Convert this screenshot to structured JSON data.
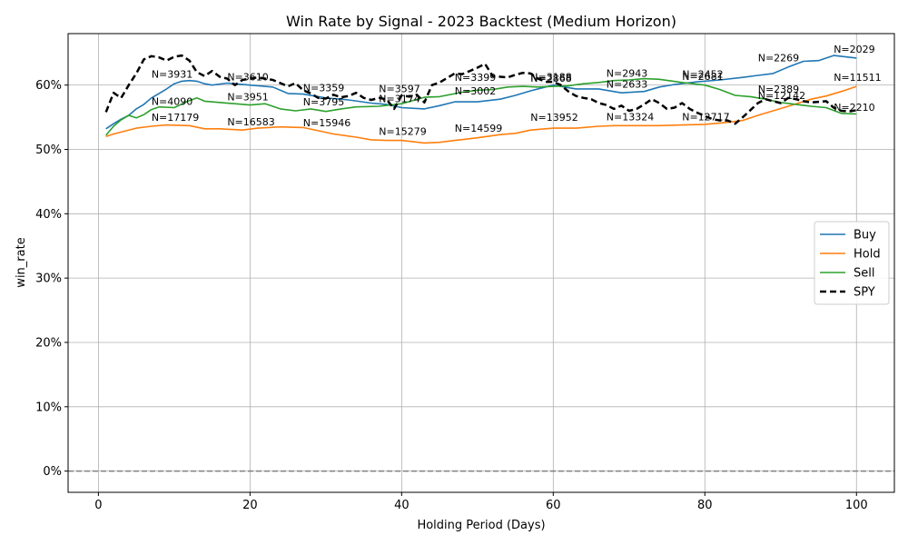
{
  "chart_data": {
    "type": "line",
    "title": "Win Rate by Signal - 2023 Backtest (Medium Horizon)",
    "xlabel": "Holding Period (Days)",
    "ylabel": "win_rate",
    "xlim": [
      -4,
      105
    ],
    "ylim": [
      -0.033,
      0.68
    ],
    "xticks": [
      0,
      20,
      40,
      60,
      80,
      100
    ],
    "xtick_labels": [
      "0",
      "20",
      "40",
      "60",
      "80",
      "100"
    ],
    "yticks": [
      0,
      0.1,
      0.2,
      0.3,
      0.4,
      0.5,
      0.6
    ],
    "ytick_labels": [
      "0%",
      "10%",
      "20%",
      "30%",
      "40%",
      "50%",
      "60%"
    ],
    "grid": true,
    "legend_position": "center-right",
    "reference_line": {
      "y": 0,
      "style": "dashed",
      "color": "#808080"
    },
    "series": [
      {
        "name": "Buy",
        "color": "#1f77b4",
        "dash": false,
        "points": [
          [
            1,
            0.532
          ],
          [
            2,
            0.54
          ],
          [
            3,
            0.547
          ],
          [
            4,
            0.553
          ],
          [
            5,
            0.563
          ],
          [
            6,
            0.57
          ],
          [
            7,
            0.58
          ],
          [
            8,
            0.587
          ],
          [
            9,
            0.594
          ],
          [
            10,
            0.602
          ],
          [
            11,
            0.606
          ],
          [
            12,
            0.607
          ],
          [
            13,
            0.606
          ],
          [
            14,
            0.602
          ],
          [
            15,
            0.6
          ],
          [
            17,
            0.603
          ],
          [
            20,
            0.6
          ],
          [
            23,
            0.597
          ],
          [
            25,
            0.587
          ],
          [
            27,
            0.586
          ],
          [
            30,
            0.58
          ],
          [
            33,
            0.577
          ],
          [
            36,
            0.572
          ],
          [
            38,
            0.57
          ],
          [
            40,
            0.565
          ],
          [
            43,
            0.563
          ],
          [
            45,
            0.568
          ],
          [
            47,
            0.574
          ],
          [
            50,
            0.574
          ],
          [
            53,
            0.578
          ],
          [
            55,
            0.584
          ],
          [
            57,
            0.591
          ],
          [
            60,
            0.6
          ],
          [
            63,
            0.594
          ],
          [
            66,
            0.594
          ],
          [
            69,
            0.588
          ],
          [
            72,
            0.59
          ],
          [
            74,
            0.597
          ],
          [
            76,
            0.601
          ],
          [
            79,
            0.605
          ],
          [
            82,
            0.608
          ],
          [
            85,
            0.612
          ],
          [
            87,
            0.615
          ],
          [
            89,
            0.618
          ],
          [
            91,
            0.628
          ],
          [
            93,
            0.637
          ],
          [
            95,
            0.638
          ],
          [
            97,
            0.646
          ],
          [
            100,
            0.642
          ]
        ]
      },
      {
        "name": "Hold",
        "color": "#ff7f0e",
        "dash": false,
        "points": [
          [
            1,
            0.52
          ],
          [
            2,
            0.524
          ],
          [
            3,
            0.527
          ],
          [
            5,
            0.533
          ],
          [
            7,
            0.536
          ],
          [
            9,
            0.538
          ],
          [
            12,
            0.537
          ],
          [
            14,
            0.532
          ],
          [
            16,
            0.532
          ],
          [
            19,
            0.53
          ],
          [
            21,
            0.533
          ],
          [
            24,
            0.535
          ],
          [
            27,
            0.534
          ],
          [
            29,
            0.529
          ],
          [
            31,
            0.524
          ],
          [
            34,
            0.519
          ],
          [
            36,
            0.515
          ],
          [
            38,
            0.514
          ],
          [
            40,
            0.514
          ],
          [
            43,
            0.51
          ],
          [
            45,
            0.511
          ],
          [
            47,
            0.514
          ],
          [
            50,
            0.518
          ],
          [
            53,
            0.523
          ],
          [
            55,
            0.525
          ],
          [
            57,
            0.53
          ],
          [
            60,
            0.533
          ],
          [
            63,
            0.533
          ],
          [
            66,
            0.536
          ],
          [
            68,
            0.537
          ],
          [
            71,
            0.537
          ],
          [
            74,
            0.537
          ],
          [
            77,
            0.538
          ],
          [
            80,
            0.539
          ],
          [
            83,
            0.542
          ],
          [
            85,
            0.545
          ],
          [
            87,
            0.553
          ],
          [
            89,
            0.56
          ],
          [
            91,
            0.567
          ],
          [
            94,
            0.578
          ],
          [
            96,
            0.583
          ],
          [
            98,
            0.59
          ],
          [
            100,
            0.598
          ]
        ]
      },
      {
        "name": "Sell",
        "color": "#2ca02c",
        "dash": false,
        "points": [
          [
            1,
            0.522
          ],
          [
            2,
            0.536
          ],
          [
            3,
            0.546
          ],
          [
            4,
            0.553
          ],
          [
            5,
            0.549
          ],
          [
            6,
            0.554
          ],
          [
            7,
            0.562
          ],
          [
            8,
            0.566
          ],
          [
            10,
            0.565
          ],
          [
            12,
            0.576
          ],
          [
            13,
            0.58
          ],
          [
            14,
            0.575
          ],
          [
            16,
            0.573
          ],
          [
            18,
            0.571
          ],
          [
            20,
            0.569
          ],
          [
            22,
            0.571
          ],
          [
            24,
            0.563
          ],
          [
            26,
            0.56
          ],
          [
            28,
            0.563
          ],
          [
            30,
            0.559
          ],
          [
            32,
            0.563
          ],
          [
            34,
            0.566
          ],
          [
            37,
            0.567
          ],
          [
            40,
            0.571
          ],
          [
            43,
            0.581
          ],
          [
            45,
            0.582
          ],
          [
            48,
            0.589
          ],
          [
            50,
            0.592
          ],
          [
            52,
            0.593
          ],
          [
            54,
            0.597
          ],
          [
            56,
            0.598
          ],
          [
            58,
            0.597
          ],
          [
            60,
            0.598
          ],
          [
            62,
            0.599
          ],
          [
            64,
            0.602
          ],
          [
            66,
            0.604
          ],
          [
            68,
            0.607
          ],
          [
            70,
            0.608
          ],
          [
            72,
            0.61
          ],
          [
            74,
            0.609
          ],
          [
            77,
            0.604
          ],
          [
            80,
            0.6
          ],
          [
            82,
            0.593
          ],
          [
            84,
            0.584
          ],
          [
            86,
            0.582
          ],
          [
            88,
            0.578
          ],
          [
            90,
            0.573
          ],
          [
            92,
            0.57
          ],
          [
            94,
            0.567
          ],
          [
            96,
            0.565
          ],
          [
            98,
            0.556
          ],
          [
            100,
            0.555
          ]
        ]
      },
      {
        "name": "SPY",
        "color": "#000000",
        "dash": true,
        "points": [
          [
            1,
            0.558
          ],
          [
            2,
            0.588
          ],
          [
            3,
            0.58
          ],
          [
            4,
            0.6
          ],
          [
            5,
            0.618
          ],
          [
            6,
            0.64
          ],
          [
            7,
            0.645
          ],
          [
            8,
            0.643
          ],
          [
            9,
            0.638
          ],
          [
            10,
            0.644
          ],
          [
            11,
            0.646
          ],
          [
            12,
            0.638
          ],
          [
            13,
            0.62
          ],
          [
            14,
            0.614
          ],
          [
            15,
            0.622
          ],
          [
            16,
            0.613
          ],
          [
            17,
            0.61
          ],
          [
            18,
            0.6
          ],
          [
            19,
            0.608
          ],
          [
            20,
            0.61
          ],
          [
            21,
            0.612
          ],
          [
            22,
            0.61
          ],
          [
            23,
            0.608
          ],
          [
            24,
            0.603
          ],
          [
            25,
            0.598
          ],
          [
            26,
            0.603
          ],
          [
            27,
            0.592
          ],
          [
            28,
            0.587
          ],
          [
            29,
            0.58
          ],
          [
            30,
            0.579
          ],
          [
            31,
            0.585
          ],
          [
            32,
            0.581
          ],
          [
            33,
            0.583
          ],
          [
            34,
            0.588
          ],
          [
            35,
            0.58
          ],
          [
            36,
            0.577
          ],
          [
            37,
            0.58
          ],
          [
            38,
            0.578
          ],
          [
            39,
            0.563
          ],
          [
            40,
            0.584
          ],
          [
            41,
            0.582
          ],
          [
            42,
            0.585
          ],
          [
            43,
            0.573
          ],
          [
            44,
            0.6
          ],
          [
            45,
            0.604
          ],
          [
            46,
            0.611
          ],
          [
            47,
            0.618
          ],
          [
            48,
            0.617
          ],
          [
            49,
            0.622
          ],
          [
            50,
            0.627
          ],
          [
            51,
            0.633
          ],
          [
            52,
            0.614
          ],
          [
            53,
            0.613
          ],
          [
            54,
            0.612
          ],
          [
            55,
            0.616
          ],
          [
            56,
            0.619
          ],
          [
            57,
            0.618
          ],
          [
            58,
            0.61
          ],
          [
            59,
            0.605
          ],
          [
            60,
            0.605
          ],
          [
            61,
            0.6
          ],
          [
            62,
            0.59
          ],
          [
            63,
            0.583
          ],
          [
            64,
            0.58
          ],
          [
            65,
            0.578
          ],
          [
            66,
            0.572
          ],
          [
            67,
            0.569
          ],
          [
            68,
            0.563
          ],
          [
            69,
            0.568
          ],
          [
            70,
            0.56
          ],
          [
            71,
            0.563
          ],
          [
            72,
            0.57
          ],
          [
            73,
            0.578
          ],
          [
            74,
            0.572
          ],
          [
            75,
            0.563
          ],
          [
            76,
            0.565
          ],
          [
            77,
            0.572
          ],
          [
            78,
            0.563
          ],
          [
            79,
            0.557
          ],
          [
            80,
            0.552
          ],
          [
            81,
            0.547
          ],
          [
            82,
            0.545
          ],
          [
            83,
            0.545
          ],
          [
            84,
            0.54
          ],
          [
            85,
            0.55
          ],
          [
            86,
            0.561
          ],
          [
            87,
            0.572
          ],
          [
            88,
            0.578
          ],
          [
            89,
            0.575
          ],
          [
            90,
            0.572
          ],
          [
            91,
            0.58
          ],
          [
            92,
            0.578
          ],
          [
            93,
            0.575
          ],
          [
            94,
            0.573
          ],
          [
            95,
            0.574
          ],
          [
            96,
            0.575
          ],
          [
            97,
            0.565
          ],
          [
            98,
            0.56
          ],
          [
            99,
            0.559
          ],
          [
            100,
            0.561
          ]
        ]
      }
    ],
    "annotations": [
      {
        "text": "N=3931",
        "x": 7,
        "y": 0.607
      },
      {
        "text": "N=4090",
        "x": 7,
        "y": 0.565
      },
      {
        "text": "N=17179",
        "x": 7,
        "y": 0.54
      },
      {
        "text": "N=3610",
        "x": 17,
        "y": 0.603
      },
      {
        "text": "N=3951",
        "x": 17,
        "y": 0.572
      },
      {
        "text": "N=16583",
        "x": 17,
        "y": 0.533
      },
      {
        "text": "N=3359",
        "x": 27,
        "y": 0.586
      },
      {
        "text": "N=3795",
        "x": 27,
        "y": 0.564
      },
      {
        "text": "N=15946",
        "x": 27,
        "y": 0.532
      },
      {
        "text": "N=3597",
        "x": 37,
        "y": 0.585
      },
      {
        "text": "N=3174",
        "x": 37,
        "y": 0.569
      },
      {
        "text": "N=15279",
        "x": 37,
        "y": 0.518
      },
      {
        "text": "N=3399",
        "x": 47,
        "y": 0.602
      },
      {
        "text": "N=3002",
        "x": 47,
        "y": 0.581
      },
      {
        "text": "N=14599",
        "x": 47,
        "y": 0.523
      },
      {
        "text": "N=3188",
        "x": 57,
        "y": 0.603
      },
      {
        "text": "N=2868",
        "x": 57,
        "y": 0.601
      },
      {
        "text": "N=13952",
        "x": 57,
        "y": 0.54
      },
      {
        "text": "N=2943",
        "x": 67,
        "y": 0.609
      },
      {
        "text": "N=2633",
        "x": 67,
        "y": 0.592
      },
      {
        "text": "N=13324",
        "x": 67,
        "y": 0.541
      },
      {
        "text": "N=2452",
        "x": 77,
        "y": 0.607
      },
      {
        "text": "N=2681",
        "x": 77,
        "y": 0.604
      },
      {
        "text": "N=12717",
        "x": 77,
        "y": 0.541
      },
      {
        "text": "N=2269",
        "x": 87,
        "y": 0.633
      },
      {
        "text": "N=2389",
        "x": 87,
        "y": 0.584
      },
      {
        "text": "N=12142",
        "x": 87,
        "y": 0.574
      },
      {
        "text": "N=2029",
        "x": 97,
        "y": 0.646
      },
      {
        "text": "N=11511",
        "x": 97,
        "y": 0.602
      },
      {
        "text": "N=2210",
        "x": 97,
        "y": 0.556
      }
    ]
  }
}
